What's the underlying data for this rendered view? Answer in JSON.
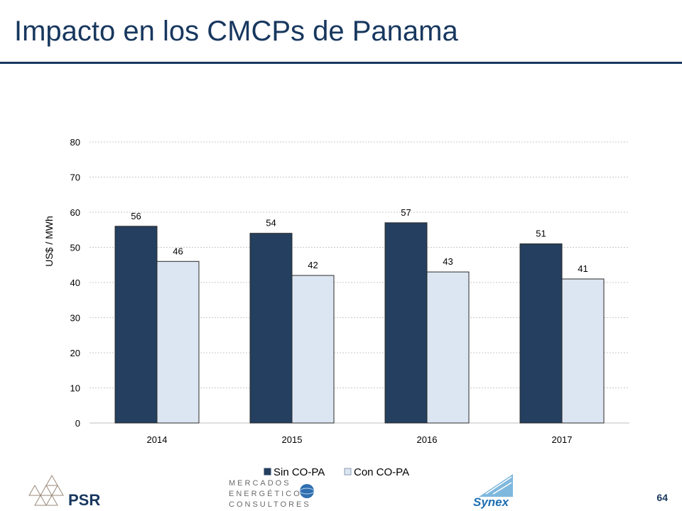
{
  "slide": {
    "title": "Impacto en los CMCPs de Panama",
    "page_number": "64"
  },
  "logos": {
    "psr": "PSR",
    "mec_line1": "MERCADOS",
    "mec_line2": "ENERGÉTICOS",
    "mec_line3": "CONSULTORES",
    "synex": "Synex"
  },
  "colors": {
    "title": "#17375e",
    "series_sin": "#243f5f",
    "series_con": "#dce6f2",
    "bar_border": "#2b2b2b"
  },
  "chart_data": {
    "type": "bar",
    "title": "",
    "xlabel": "",
    "ylabel": "US$ / MWh",
    "categories": [
      "2014",
      "2015",
      "2016",
      "2017"
    ],
    "series": [
      {
        "name": "Sin CO-PA",
        "values": [
          56,
          54,
          57,
          51
        ]
      },
      {
        "name": "Con CO-PA",
        "values": [
          46,
          42,
          43,
          41
        ]
      }
    ],
    "ylim": [
      0,
      80
    ],
    "yticks": [
      0,
      10,
      20,
      30,
      40,
      50,
      60,
      70,
      80
    ],
    "grid": true,
    "legend_position": "bottom",
    "data_labels": true
  }
}
